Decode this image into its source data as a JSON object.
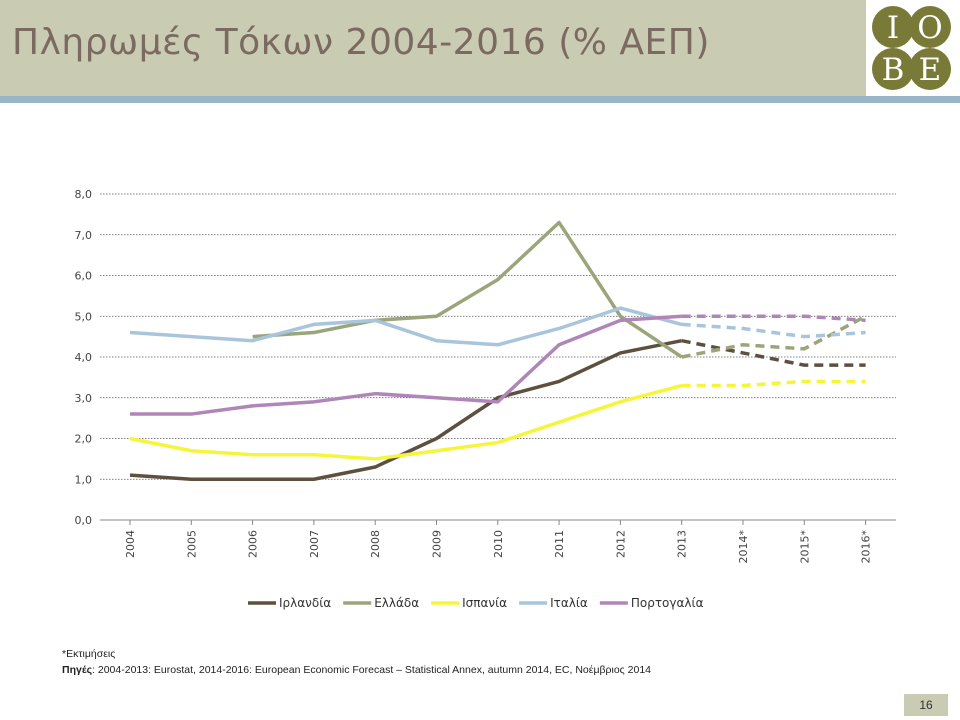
{
  "slide": {
    "title": "Πληρωμές Τόκων 2004-2016 (% ΑΕΠ)",
    "page_number": "16",
    "logo": {
      "letters": [
        "I",
        "O",
        "B",
        "E"
      ],
      "color": "#7a7a38"
    },
    "footnote": "*Εκτιμήσεις",
    "source_label": "Πηγές",
    "source_text": ": 2004-2013: Eurostat, 2014-2016: European Economic Forecast – Statistical Annex, autumn 2014, EC, Νοέμβριος 2014"
  },
  "chart_data": {
    "type": "line",
    "title": "",
    "xlabel": "",
    "ylabel": "",
    "ylim": [
      0,
      8
    ],
    "yticks": [
      "0,0",
      "1,0",
      "2,0",
      "3,0",
      "4,0",
      "5,0",
      "6,0",
      "7,0",
      "8,0"
    ],
    "grid": true,
    "legend_position": "bottom",
    "categories": [
      "2004",
      "2005",
      "2006",
      "2007",
      "2008",
      "2009",
      "2010",
      "2011",
      "2012",
      "2013",
      "2014*",
      "2015*",
      "2016*"
    ],
    "estimate_from": "2013",
    "series": [
      {
        "name": "Ιρλανδία",
        "color": "#5e503f",
        "values": [
          1.1,
          1.0,
          1.0,
          1.0,
          1.3,
          2.0,
          3.0,
          3.4,
          4.1,
          4.4,
          4.1,
          3.8,
          3.8
        ]
      },
      {
        "name": "Ελλάδα",
        "color": "#9aa57b",
        "values": [
          null,
          null,
          4.5,
          4.6,
          4.9,
          5.0,
          5.9,
          7.3,
          5.0,
          4.0,
          4.3,
          4.2,
          5.0
        ]
      },
      {
        "name": "Ισπανία",
        "color": "#f5f53a",
        "values": [
          2.0,
          1.7,
          1.6,
          1.6,
          1.5,
          1.7,
          1.9,
          2.4,
          2.9,
          3.3,
          3.3,
          3.4,
          3.4
        ]
      },
      {
        "name": "Ιταλία",
        "color": "#a8c5dc",
        "values": [
          4.6,
          4.5,
          4.4,
          4.8,
          4.9,
          4.4,
          4.3,
          4.7,
          5.2,
          4.8,
          4.7,
          4.5,
          4.6
        ]
      },
      {
        "name": "Πορτογαλία",
        "color": "#b085b8",
        "values": [
          2.6,
          2.6,
          2.8,
          2.9,
          3.1,
          3.0,
          2.9,
          4.3,
          4.9,
          5.0,
          5.0,
          5.0,
          4.9
        ]
      }
    ]
  }
}
